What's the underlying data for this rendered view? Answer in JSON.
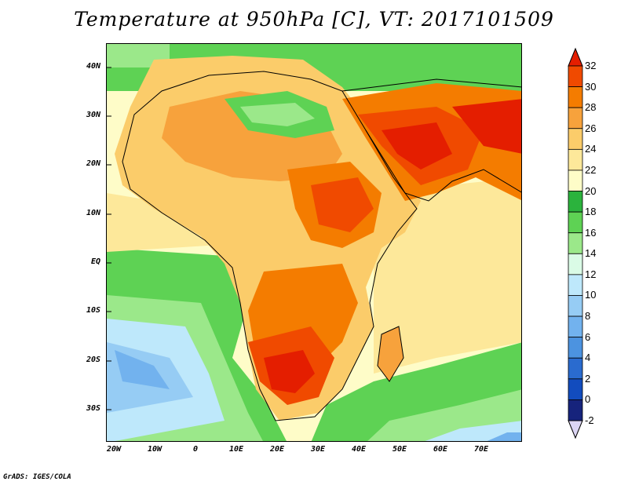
{
  "title": "Temperature at 950hPa [C], VT: 2017101509",
  "footer": "GrADS: IGES/COLA",
  "map": {
    "projection": "lat-lon",
    "lon_range": [
      -22,
      80
    ],
    "lat_range": [
      -36,
      45
    ],
    "lat_ticks": [
      "40N",
      "30N",
      "20N",
      "10N",
      "EQ",
      "10S",
      "20S",
      "30S"
    ],
    "lon_ticks": [
      "20W",
      "10W",
      "0",
      "10E",
      "20E",
      "30E",
      "40E",
      "50E",
      "60E",
      "70E"
    ],
    "field": "temperature_950hPa"
  },
  "colorbar": {
    "labels": [
      "32",
      "30",
      "28",
      "26",
      "24",
      "22",
      "20",
      "18",
      "16",
      "14",
      "12",
      "10",
      "8",
      "6",
      "4",
      "2",
      "0",
      "-2"
    ],
    "colors": [
      "#e41e00",
      "#f04a00",
      "#f47c00",
      "#f7a23c",
      "#fbcc6a",
      "#fde89a",
      "#fefcc8",
      "#2bb33d",
      "#5ed254",
      "#9be88a",
      "#dafbe6",
      "#bee8fb",
      "#96ccf4",
      "#72b2ee",
      "#4c93e0",
      "#2a6bcf",
      "#124cbe",
      "#16237c",
      "#dcd6f4"
    ]
  }
}
